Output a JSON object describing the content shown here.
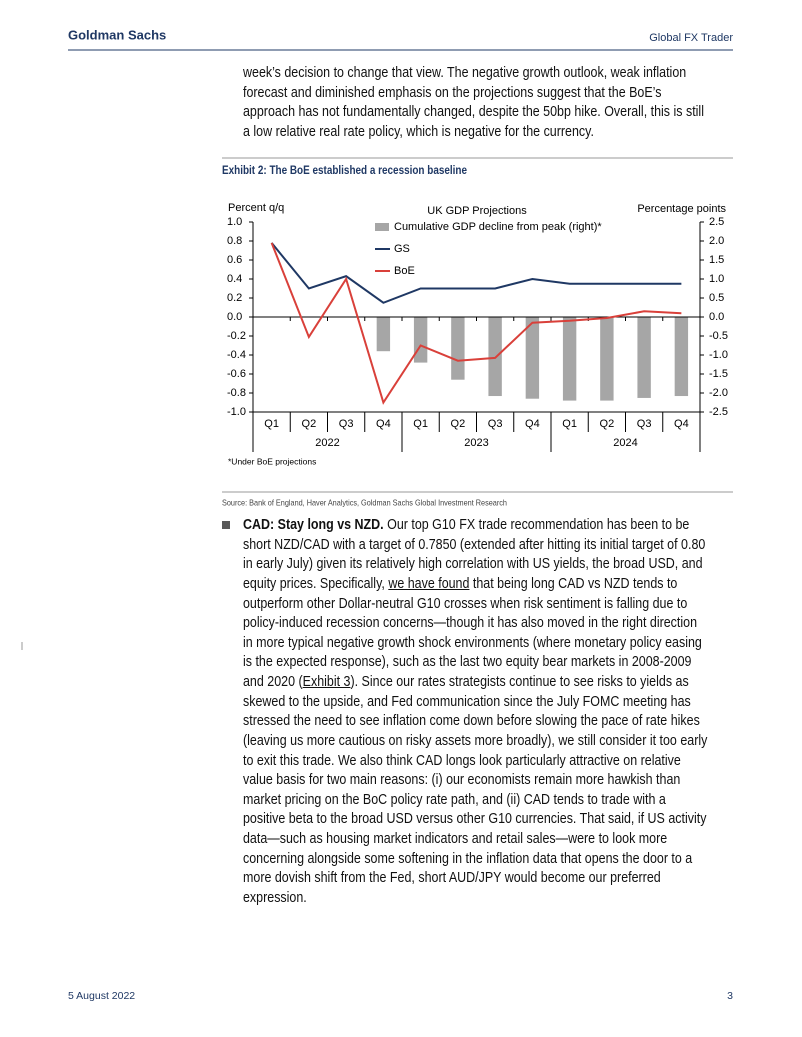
{
  "header": {
    "left": "Goldman Sachs",
    "right": "Global FX Trader"
  },
  "intro_lines": [
    "week’s decision to change that view. The negative growth outlook, weak inflation",
    "forecast and diminished emphasis on the projections suggest that the BoE’s",
    "approach has not fundamentally changed, despite the 50bp hike. Overall, this is still",
    "a low relative real rate policy, which is negative for the currency."
  ],
  "exhibit": {
    "title": "Exhibit 2: The BoE established a recession baseline",
    "source": "Source: Bank of England, Haver Analytics, Goldman Sachs Global Investment Research"
  },
  "chart_data": {
    "type": "combo",
    "title": "UK GDP Projections",
    "ylabel": "Percent q/q",
    "y2label": "Percentage points",
    "footnote": "*Under BoE projections",
    "categories": [
      "Q1",
      "Q2",
      "Q3",
      "Q4",
      "Q1",
      "Q2",
      "Q3",
      "Q4",
      "Q1",
      "Q2",
      "Q3",
      "Q4"
    ],
    "x_groups": [
      "2022",
      "2023",
      "2024"
    ],
    "ylim": [
      -1,
      1
    ],
    "yticks": [
      {
        "value": 1,
        "label": "1.0"
      },
      0.8,
      0.6,
      0.4,
      0.2,
      {
        "value": 0,
        "label": "0.0"
      },
      -0.2,
      -0.4,
      -0.6,
      -0.8,
      {
        "value": -1,
        "label": "-1.0"
      }
    ],
    "y2lim": [
      -2.5,
      2.5
    ],
    "y2ticks": [
      2.5,
      {
        "value": 2,
        "label": "2.0"
      },
      1.5,
      {
        "value": 1,
        "label": "1.0"
      },
      0.5,
      {
        "value": 0,
        "label": "0.0"
      },
      -0.5,
      {
        "value": -1,
        "label": "-1.0"
      },
      -1.5,
      {
        "value": -2,
        "label": "-2.0"
      },
      -2.5
    ],
    "series": [
      {
        "name": "Cumulative GDP decline from peak (right)*",
        "type": "bar",
        "axis": "y2",
        "color": "#a6a6a6",
        "values": [
          null,
          null,
          null,
          -0.9,
          -1.2,
          -1.65,
          -2.08,
          -2.15,
          -2.2,
          -2.2,
          -2.13,
          -2.08
        ]
      },
      {
        "name": "GS",
        "type": "line",
        "color": "#1f3864",
        "values": [
          0.78,
          0.3,
          0.43,
          0.15,
          0.3,
          0.3,
          0.3,
          0.4,
          0.35,
          0.35,
          0.35,
          0.35
        ]
      },
      {
        "name": "BoE",
        "type": "line",
        "color": "#d9403a",
        "values": [
          0.78,
          -0.21,
          0.4,
          -0.9,
          -0.3,
          -0.46,
          -0.43,
          -0.06,
          -0.04,
          -0.01,
          0.06,
          0.04
        ]
      }
    ]
  },
  "bullet": {
    "lines": [
      [
        {
          "text": "CAD: Stay long vs NZD.",
          "style": "bold"
        },
        {
          "text": " Our top G10 FX trade recommendation has been to be"
        }
      ],
      [
        {
          "text": "short NZD/CAD with a target of 0.7850 (extended after hitting its initial target of 0.80"
        }
      ],
      [
        {
          "text": "in early July) given its relatively high correlation with US yields, the broad USD, and"
        }
      ],
      [
        {
          "text": "equity prices. Specifically, "
        },
        {
          "text": "we have found",
          "style": "link"
        },
        {
          "text": " that being long CAD vs NZD tends to"
        }
      ],
      [
        {
          "text": "outperform other Dollar-neutral G10 crosses when risk sentiment is falling due to"
        }
      ],
      [
        {
          "text": "policy-induced recession concerns—though it has also moved in the right direction"
        }
      ],
      [
        {
          "text": "in more typical negative growth shock environments (where monetary policy easing"
        }
      ],
      [
        {
          "text": "is the expected response), such as the last two equity bear markets in 2008-2009"
        }
      ],
      [
        {
          "text": "and 2020 ("
        },
        {
          "text": "Exhibit 3",
          "style": "link"
        },
        {
          "text": "). Since our rates strategists continue to see risks to yields as"
        }
      ],
      [
        {
          "text": "skewed to the upside, and Fed communication since the July FOMC meeting has"
        }
      ],
      [
        {
          "text": "stressed the need to see inflation come down before slowing the pace of rate hikes"
        }
      ],
      [
        {
          "text": "(leaving us more cautious on risky assets more broadly), we still consider it too early"
        }
      ],
      [
        {
          "text": "to exit this trade. We also think CAD longs look particularly attractive on relative"
        }
      ],
      [
        {
          "text": "value basis for two main reasons: (i) our economists remain more hawkish than"
        }
      ],
      [
        {
          "text": "market pricing on the BoC policy rate path, and (ii) CAD tends to trade with a"
        }
      ],
      [
        {
          "text": "positive beta to the broad USD versus other G10 currencies. That said, if US activity"
        }
      ],
      [
        {
          "text": "data—such as housing market indicators and retail sales—were to look more"
        }
      ],
      [
        {
          "text": "concerning alongside some softening in the inflation data that opens the door to a"
        }
      ],
      [
        {
          "text": "more dovish shift from the Fed, short AUD/JPY would become our preferred"
        }
      ],
      [
        {
          "text": "expression."
        }
      ]
    ]
  },
  "footer": {
    "date": "5 August 2022",
    "page": 3
  }
}
